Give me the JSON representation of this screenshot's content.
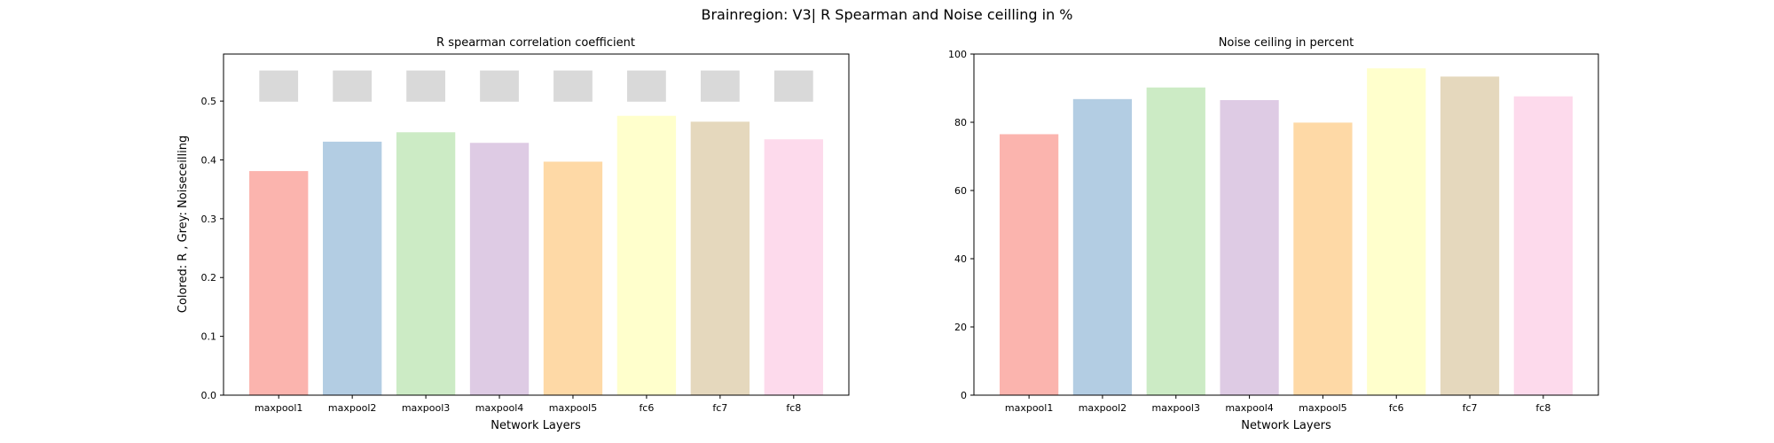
{
  "figure": {
    "suptitle": "Brainregion: V3| R Spearman and Noise ceilling in %"
  },
  "chart_data": [
    {
      "type": "bar",
      "title": "R spearman correlation coefficient",
      "xlabel": "Network Layers",
      "ylabel": "Colored: R , Grey: Noiseceilling",
      "categories": [
        "maxpool1",
        "maxpool2",
        "maxpool3",
        "maxpool4",
        "maxpool5",
        "fc6",
        "fc7",
        "fc8"
      ],
      "ylim": [
        0,
        0.58
      ],
      "yticks": [
        0.0,
        0.1,
        0.2,
        0.3,
        0.4,
        0.5
      ],
      "ytick_labels": [
        "0.0",
        "0.1",
        "0.2",
        "0.3",
        "0.4",
        "0.5"
      ],
      "series": [
        {
          "values": [
            0.381,
            0.431,
            0.447,
            0.429,
            0.397,
            0.475,
            0.465,
            0.435
          ]
        }
      ],
      "noise_ceiling": {
        "lower": [
          0.499,
          0.499,
          0.499,
          0.499,
          0.499,
          0.499,
          0.499,
          0.499
        ],
        "upper": [
          0.552,
          0.552,
          0.552,
          0.552,
          0.552,
          0.552,
          0.552,
          0.552
        ],
        "color": "#d9d9d9"
      },
      "bar_colors": [
        "#fbb4ae",
        "#b3cde3",
        "#ccebc5",
        "#decbe4",
        "#fed9a6",
        "#ffffcc",
        "#e5d8bd",
        "#fddaec"
      ],
      "grid": false,
      "legend": "none"
    },
    {
      "type": "bar",
      "title": "Noise ceiling in percent",
      "xlabel": "Network Layers",
      "ylabel": "",
      "categories": [
        "maxpool1",
        "maxpool2",
        "maxpool3",
        "maxpool4",
        "maxpool5",
        "fc6",
        "fc7",
        "fc8"
      ],
      "ylim": [
        0,
        100
      ],
      "yticks": [
        0,
        20,
        40,
        60,
        80,
        100
      ],
      "ytick_labels": [
        "0",
        "20",
        "40",
        "60",
        "80",
        "100"
      ],
      "series": [
        {
          "values": [
            76.5,
            86.8,
            90.2,
            86.5,
            79.9,
            95.8,
            93.4,
            87.6
          ]
        }
      ],
      "bar_colors": [
        "#fbb4ae",
        "#b3cde3",
        "#ccebc5",
        "#decbe4",
        "#fed9a6",
        "#ffffcc",
        "#e5d8bd",
        "#fddaec"
      ],
      "grid": false,
      "legend": "none"
    }
  ]
}
